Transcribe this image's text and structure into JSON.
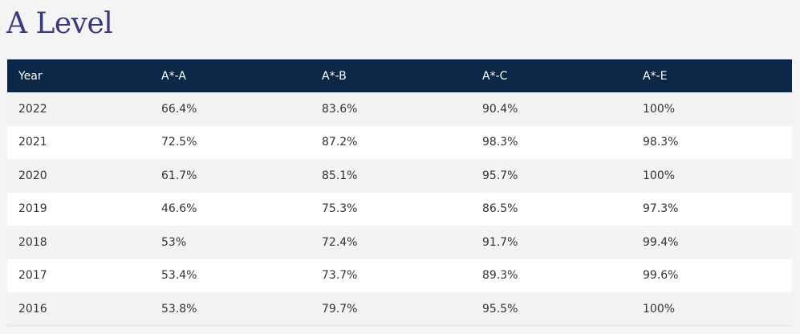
{
  "page": {
    "title": "A Level"
  },
  "table": {
    "headers": [
      "Year",
      "A*-A",
      "A*-B",
      "A*-C",
      "A*-E"
    ],
    "rows": [
      [
        "2022",
        "66.4%",
        "83.6%",
        "90.4%",
        "100%"
      ],
      [
        "2021",
        "72.5%",
        "87.2%",
        "98.3%",
        "98.3%"
      ],
      [
        "2020",
        "61.7%",
        "85.1%",
        "95.7%",
        "100%"
      ],
      [
        "2019",
        "46.6%",
        "75.3%",
        "86.5%",
        "97.3%"
      ],
      [
        "2018",
        "53%",
        "72.4%",
        "91.7%",
        "99.4%"
      ],
      [
        "2017",
        "53.4%",
        "73.7%",
        "89.3%",
        "99.6%"
      ],
      [
        "2016",
        "53.8%",
        "79.7%",
        "95.5%",
        "100%"
      ]
    ]
  },
  "colors": {
    "title": "#3b3a78",
    "header_bg": "#0b2647",
    "header_text": "#ffffff",
    "row_odd": "#f3f3f3",
    "row_even": "#ffffff",
    "cell_text": "#333333"
  }
}
